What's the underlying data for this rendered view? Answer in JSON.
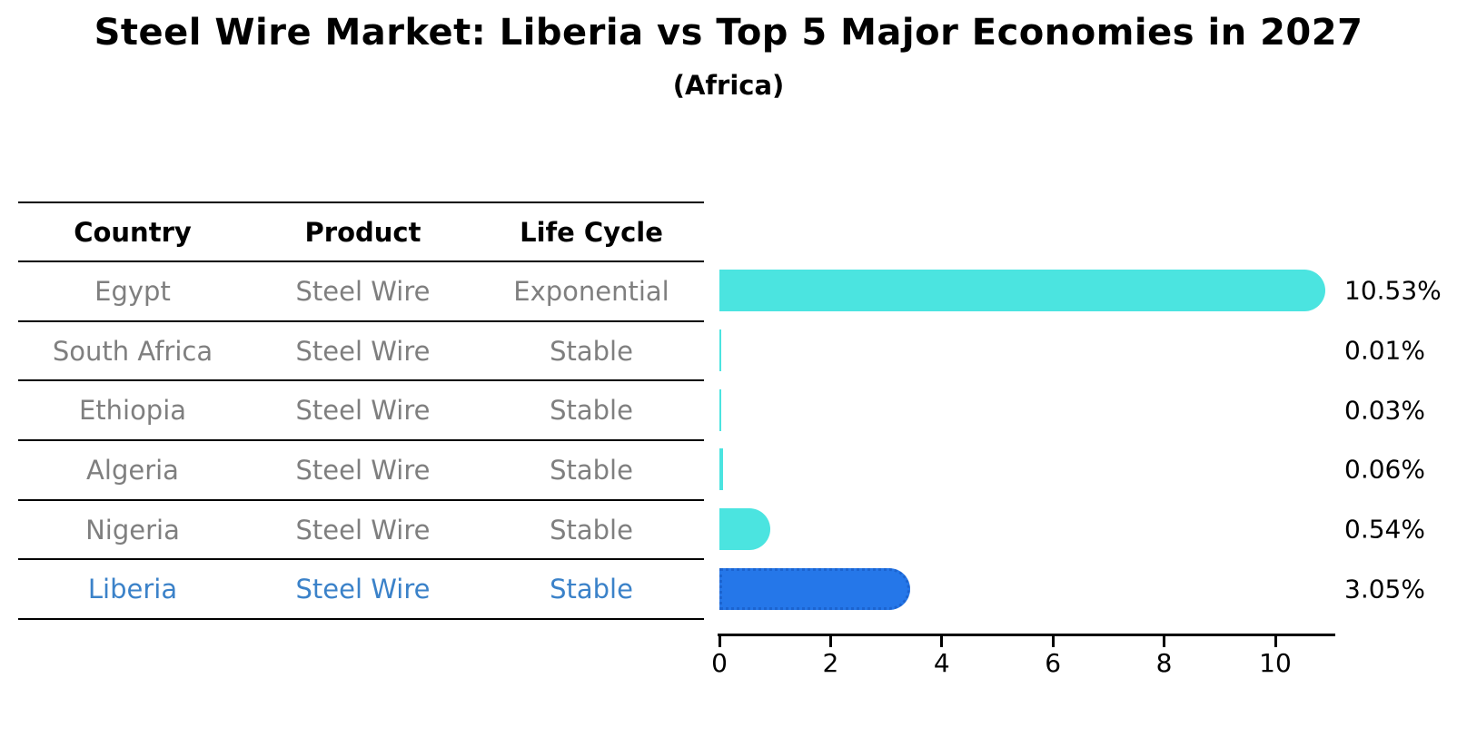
{
  "title": "Steel Wire Market: Liberia vs Top 5 Major Economies in 2027",
  "subtitle": "(Africa)",
  "table": {
    "columns": [
      "Country",
      "Product",
      "Life Cycle"
    ],
    "rows": [
      {
        "country": "Egypt",
        "product": "Steel Wire",
        "life_cycle": "Exponential",
        "highlight": false
      },
      {
        "country": "South Africa",
        "product": "Steel Wire",
        "life_cycle": "Stable",
        "highlight": false
      },
      {
        "country": "Ethiopia",
        "product": "Steel Wire",
        "life_cycle": "Stable",
        "highlight": false
      },
      {
        "country": "Algeria",
        "product": "Steel Wire",
        "life_cycle": "Stable",
        "highlight": false
      },
      {
        "country": "Nigeria",
        "product": "Steel Wire",
        "life_cycle": "Stable",
        "highlight": false
      },
      {
        "country": "Liberia",
        "product": "Steel Wire",
        "life_cycle": "Stable",
        "highlight": true
      }
    ]
  },
  "chart_data": {
    "type": "bar",
    "orientation": "horizontal",
    "title": "Steel Wire Market: Liberia vs Top 5 Major Economies in 2027",
    "subtitle": "(Africa)",
    "categories": [
      "Egypt",
      "South Africa",
      "Ethiopia",
      "Algeria",
      "Nigeria",
      "Liberia"
    ],
    "values": [
      10.53,
      0.01,
      0.03,
      0.06,
      0.54,
      3.05
    ],
    "value_labels": [
      "10.53%",
      "0.01%",
      "0.03%",
      "0.06%",
      "0.54%",
      "3.05%"
    ],
    "highlight_index": 5,
    "xlim": [
      0,
      11.1
    ],
    "x_ticks": [
      0,
      2,
      4,
      6,
      8,
      10
    ],
    "grid": false,
    "legend": false,
    "colors": {
      "bar": "#4BE4E0",
      "highlight_bar": "#2577E9",
      "highlight_bar_border": "#1C64D0",
      "row_text": "#7F7F7F",
      "highlight_text": "#3B82C9",
      "axis": "#000000",
      "value_label_text": "#000000"
    }
  }
}
